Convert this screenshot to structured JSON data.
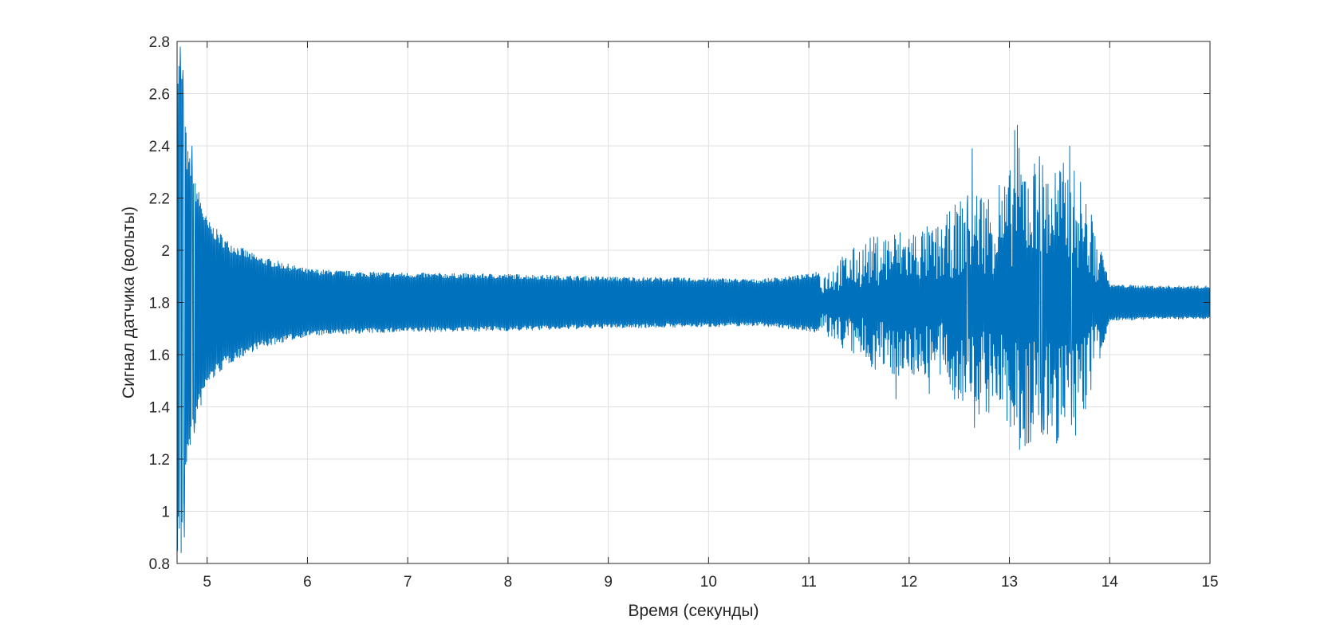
{
  "chart_data": {
    "type": "line",
    "title": "",
    "xlabel": "Время (секунды)",
    "ylabel": "Сигнал датчика (вольты)",
    "xlim": [
      4.7,
      15
    ],
    "ylim": [
      0.8,
      2.8
    ],
    "x_ticks": [
      5,
      6,
      7,
      8,
      9,
      10,
      11,
      12,
      13,
      14,
      15
    ],
    "x_tick_labels": [
      "5",
      "6",
      "7",
      "8",
      "9",
      "10",
      "11",
      "12",
      "13",
      "14",
      "15"
    ],
    "y_ticks": [
      0.8,
      1,
      1.2,
      1.4,
      1.6,
      1.8,
      2,
      2.2,
      2.4,
      2.6,
      2.8
    ],
    "y_tick_labels": [
      "0.8",
      "1",
      "1.2",
      "1.4",
      "1.6",
      "1.8",
      "2",
      "2.2",
      "2.4",
      "2.6",
      "2.8"
    ],
    "grid": true,
    "legend": "none",
    "series_color": "#0072BD",
    "series": [
      {
        "baseline": 1.8,
        "envelope": {
          "t": [
            4.7,
            4.72,
            4.75,
            4.8,
            4.9,
            5.0,
            5.2,
            5.5,
            6.0,
            6.5,
            7.0,
            8.0,
            9.0,
            10.0,
            10.5,
            11.0,
            11.2,
            11.4,
            11.6,
            11.8,
            12.0,
            12.3,
            12.5,
            12.7,
            12.9,
            13.1,
            13.3,
            13.5,
            13.7,
            13.85,
            14.0,
            14.5,
            15.0
          ],
          "half": [
            0.97,
            0.95,
            0.9,
            0.6,
            0.45,
            0.32,
            0.24,
            0.18,
            0.13,
            0.12,
            0.115,
            0.11,
            0.1,
            0.095,
            0.09,
            0.11,
            0.14,
            0.2,
            0.25,
            0.28,
            0.29,
            0.3,
            0.4,
            0.45,
            0.42,
            0.6,
            0.55,
            0.55,
            0.5,
            0.3,
            0.07,
            0.065,
            0.065
          ]
        },
        "spikes": [
          {
            "t": 4.73,
            "v": 2.78
          },
          {
            "t": 4.74,
            "v": 0.84
          },
          {
            "t": 4.76,
            "v": 2.69
          },
          {
            "t": 4.77,
            "v": 0.9
          },
          {
            "t": 4.85,
            "v": 2.4
          },
          {
            "t": 4.87,
            "v": 1.3
          },
          {
            "t": 11.87,
            "v": 1.43
          },
          {
            "t": 12.2,
            "v": 1.45
          },
          {
            "t": 12.58,
            "v": 2.18
          },
          {
            "t": 12.65,
            "v": 1.32
          },
          {
            "t": 12.63,
            "v": 2.39
          },
          {
            "t": 12.9,
            "v": 2.25
          },
          {
            "t": 13.05,
            "v": 2.46
          },
          {
            "t": 13.08,
            "v": 2.48
          },
          {
            "t": 13.12,
            "v": 1.45
          },
          {
            "t": 13.3,
            "v": 2.36
          },
          {
            "t": 13.32,
            "v": 1.35
          },
          {
            "t": 13.6,
            "v": 2.4
          },
          {
            "t": 13.66,
            "v": 1.29
          },
          {
            "t": 13.62,
            "v": 1.33
          }
        ]
      }
    ]
  }
}
